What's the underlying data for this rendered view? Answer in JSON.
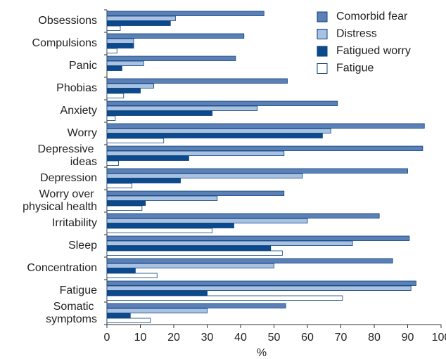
{
  "chart_data": {
    "type": "bar",
    "orientation": "horizontal",
    "x_label": "%",
    "categories": [
      "Obsessions",
      "Compulsions",
      "Panic",
      "Phobias",
      "Anxiety",
      "Worry",
      "Depressive ideas",
      "Depression",
      "Worry over physical health",
      "Irritability",
      "Sleep",
      "Concentration",
      "Fatigue",
      "Somatic symptoms"
    ],
    "series": [
      {
        "name": "Comorbid fear",
        "color": "#5b80b8",
        "values": [
          47,
          41,
          38.5,
          54,
          69,
          95,
          94.5,
          90,
          53,
          81.5,
          90.5,
          85.5,
          92.5,
          53.5
        ]
      },
      {
        "name": "Distress",
        "color": "#a9c2e3",
        "values": [
          20.5,
          8,
          11,
          14,
          45,
          67,
          53,
          58.5,
          33,
          60,
          73.5,
          50,
          91,
          30
        ]
      },
      {
        "name": "Fatigued worry",
        "color": "#0b4a8c",
        "values": [
          19,
          8,
          4.5,
          10,
          31.5,
          64.5,
          24.5,
          22,
          11.5,
          38,
          49,
          8.5,
          30,
          7
        ]
      },
      {
        "name": "Fatigue",
        "color": "#ffffff",
        "values": [
          4,
          3,
          0,
          5,
          2.5,
          17,
          3.5,
          7.5,
          10.5,
          31.5,
          52.5,
          15,
          70.5,
          13
        ]
      }
    ],
    "xlim": [
      0,
      100
    ],
    "xticks": [
      0,
      10,
      20,
      30,
      40,
      50,
      60,
      70,
      80,
      90,
      100
    ],
    "legend": "upper right"
  }
}
